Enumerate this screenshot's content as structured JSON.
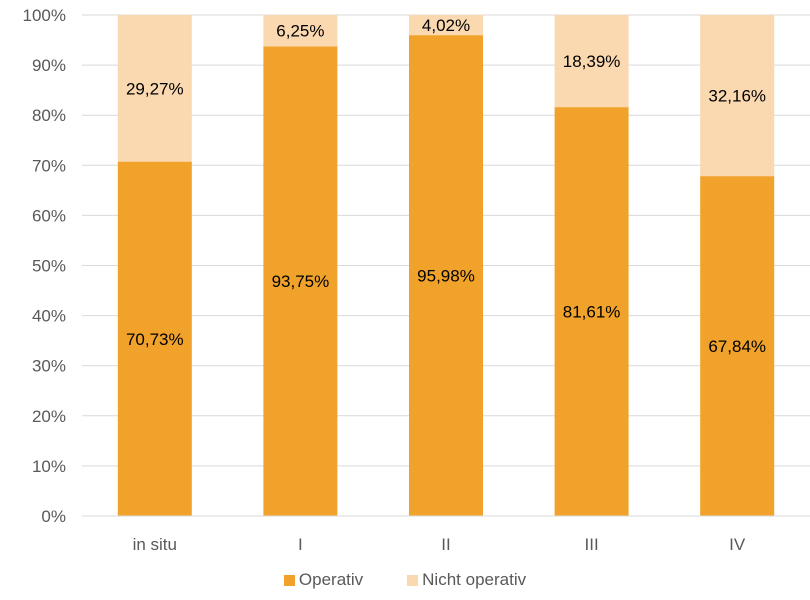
{
  "chart_data": {
    "type": "bar",
    "stacked": true,
    "categories": [
      "in situ",
      "I",
      "II",
      "III",
      "IV"
    ],
    "series": [
      {
        "name": "Operativ",
        "values": [
          70.73,
          93.75,
          95.98,
          81.61,
          67.84
        ],
        "labels": [
          "70,73%",
          "93,75%",
          "95,98%",
          "81,61%",
          "67,84%"
        ],
        "color": "#F0A22B"
      },
      {
        "name": "Nicht operativ",
        "values": [
          29.27,
          6.25,
          4.02,
          18.39,
          32.16
        ],
        "labels": [
          "29,27%",
          "6,25%",
          "4,02%",
          "18,39%",
          "32,16%"
        ],
        "color": "#FAD8B0"
      }
    ],
    "yticks": [
      "0%",
      "10%",
      "20%",
      "30%",
      "40%",
      "50%",
      "60%",
      "70%",
      "80%",
      "90%",
      "100%"
    ],
    "ylim": [
      0,
      100
    ],
    "grid": true,
    "legend_position": "bottom",
    "gridColor": "#D9D9D9"
  }
}
